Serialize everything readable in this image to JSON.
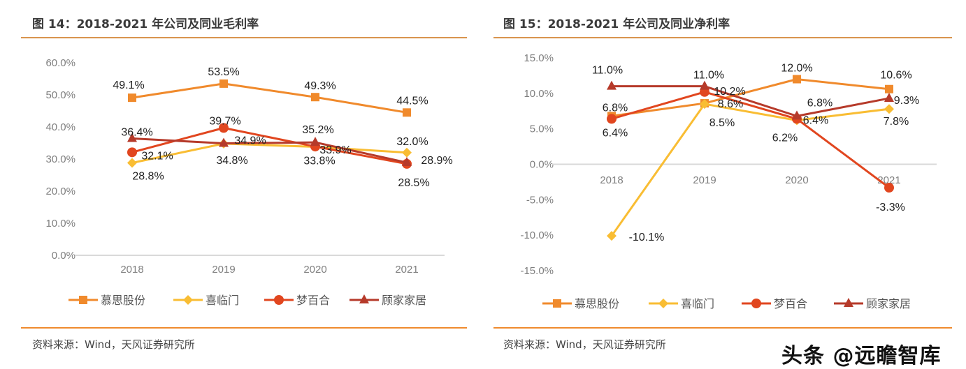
{
  "left": {
    "title": "图 14：2018-2021 年公司及同业毛利率",
    "source": "资料来源：Wind，天风证券研究所"
  },
  "right": {
    "title": "图 15：2018-2021 年公司及同业净利率",
    "source": "资料来源：Wind，天风证券研究所"
  },
  "watermark": "头条 @远瞻智库",
  "chart_data": [
    {
      "type": "line",
      "title": "图 14：2018-2021 年公司及同业毛利率",
      "categories": [
        "2018",
        "2019",
        "2020",
        "2021"
      ],
      "ylim": [
        0,
        60
      ],
      "yticks": [
        0,
        10,
        20,
        30,
        40,
        50,
        60
      ],
      "ytick_labels": [
        "0.0%",
        "10.0%",
        "20.0%",
        "30.0%",
        "40.0%",
        "50.0%",
        "60.0%"
      ],
      "grid": false,
      "legend": "bottom",
      "series": [
        {
          "name": "慕思股份",
          "color": "#f08a2c",
          "marker": "square",
          "values": [
            49.1,
            53.5,
            49.3,
            44.5
          ],
          "labels": [
            "49.1%",
            "53.5%",
            "49.3%",
            "44.5%"
          ]
        },
        {
          "name": "喜临门",
          "color": "#f9bd33",
          "marker": "diamond",
          "values": [
            28.8,
            34.8,
            33.8,
            32.0
          ],
          "labels": [
            "28.8%",
            "34.8%",
            "33.8%",
            "32.0%"
          ]
        },
        {
          "name": "梦百合",
          "color": "#e1461f",
          "marker": "circle",
          "values": [
            32.1,
            39.7,
            33.9,
            28.5
          ],
          "labels": [
            "32.1%",
            "39.7%",
            "33.9%",
            "28.5%"
          ]
        },
        {
          "name": "顾家家居",
          "color": "#b63a2a",
          "marker": "triangle",
          "values": [
            36.4,
            34.9,
            35.2,
            28.9
          ],
          "labels": [
            "36.4%",
            "34.9%",
            "35.2%",
            "28.9%"
          ]
        }
      ]
    },
    {
      "type": "line",
      "title": "图 15：2018-2021 年公司及同业净利率",
      "categories": [
        "2018",
        "2019",
        "2020",
        "2021"
      ],
      "ylim": [
        -15,
        15
      ],
      "yticks": [
        -15,
        -10,
        -5,
        0,
        5,
        10,
        15
      ],
      "ytick_labels": [
        "-15.0%",
        "-10.0%",
        "-5.0%",
        "0.0%",
        "5.0%",
        "10.0%",
        "15.0%"
      ],
      "grid": false,
      "legend": "bottom",
      "series": [
        {
          "name": "慕思股份",
          "color": "#f08a2c",
          "marker": "square",
          "values": [
            6.8,
            8.6,
            12.0,
            10.6
          ],
          "labels": [
            "6.8%",
            "8.6%",
            "12.0%",
            "10.6%"
          ]
        },
        {
          "name": "喜临门",
          "color": "#f9bd33",
          "marker": "diamond",
          "values": [
            -10.1,
            8.5,
            6.2,
            7.8
          ],
          "labels": [
            "-10.1%",
            "8.5%",
            "6.2%",
            "7.8%"
          ]
        },
        {
          "name": "梦百合",
          "color": "#e1461f",
          "marker": "circle",
          "values": [
            6.4,
            10.2,
            6.4,
            -3.3
          ],
          "labels": [
            "6.4%",
            "10.2%",
            "6.4%",
            "-3.3%"
          ]
        },
        {
          "name": "顾家家居",
          "color": "#b63a2a",
          "marker": "triangle",
          "values": [
            11.0,
            11.0,
            6.8,
            9.3
          ],
          "labels": [
            "11.0%",
            "11.0%",
            "6.8%",
            "9.3%"
          ]
        }
      ]
    }
  ]
}
